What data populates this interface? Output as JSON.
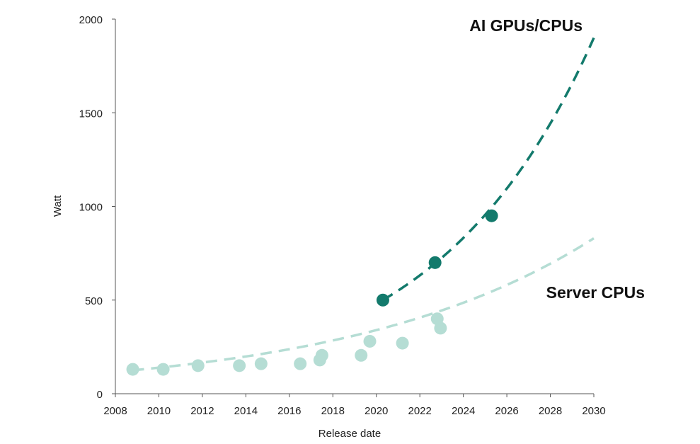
{
  "chart_data": {
    "type": "scatter",
    "title": "",
    "xlabel": "Release date",
    "ylabel": "Watt",
    "xlim": [
      2008,
      2030
    ],
    "ylim": [
      0,
      2000
    ],
    "x_ticks": [
      2008,
      2010,
      2012,
      2014,
      2016,
      2018,
      2020,
      2022,
      2024,
      2026,
      2028,
      2030
    ],
    "y_ticks": [
      0,
      500,
      1000,
      1500,
      2000
    ],
    "grid": false,
    "series": [
      {
        "name": "Server CPUs",
        "color": "#b5ddd4",
        "points": [
          {
            "x": 2008.8,
            "y": 130
          },
          {
            "x": 2010.2,
            "y": 130
          },
          {
            "x": 2011.8,
            "y": 150
          },
          {
            "x": 2013.7,
            "y": 150
          },
          {
            "x": 2014.7,
            "y": 160
          },
          {
            "x": 2016.5,
            "y": 160
          },
          {
            "x": 2017.4,
            "y": 180
          },
          {
            "x": 2017.5,
            "y": 205
          },
          {
            "x": 2019.3,
            "y": 205
          },
          {
            "x": 2019.7,
            "y": 280
          },
          {
            "x": 2021.2,
            "y": 270
          },
          {
            "x": 2022.8,
            "y": 400
          },
          {
            "x": 2022.95,
            "y": 350
          }
        ],
        "trend": {
          "x_start": 2008.8,
          "x_end": 2030,
          "y_start": 125,
          "y_end": 830
        }
      },
      {
        "name": "AI GPUs/CPUs",
        "color": "#137a6c",
        "points": [
          {
            "x": 2020.3,
            "y": 500
          },
          {
            "x": 2022.7,
            "y": 700
          },
          {
            "x": 2025.3,
            "y": 950
          }
        ],
        "trend": {
          "x_start": 2020.3,
          "x_end": 2030,
          "y_start": 500,
          "y_end": 1900
        }
      }
    ],
    "annotations": [
      "AI GPUs/CPUs",
      "Server CPUs"
    ]
  }
}
